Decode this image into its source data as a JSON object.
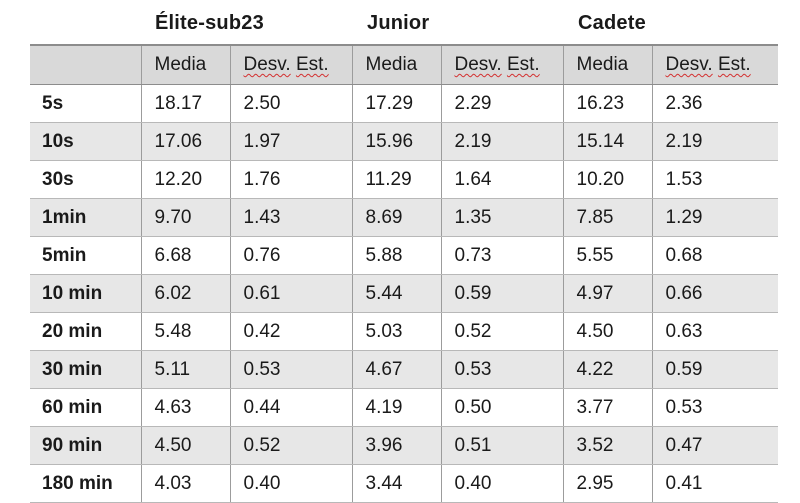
{
  "groups": [
    "Élite-sub23",
    "Junior",
    "Cadete"
  ],
  "subheaders": {
    "media": "Media",
    "desv_prefix": "Desv.",
    "desv_suffix": "Est."
  },
  "rows": [
    {
      "label": "5s",
      "values": [
        "18.17",
        "2.50",
        "17.29",
        "2.29",
        "16.23",
        "2.36"
      ]
    },
    {
      "label": "10s",
      "values": [
        "17.06",
        "1.97",
        "15.96",
        "2.19",
        "15.14",
        "2.19"
      ]
    },
    {
      "label": "30s",
      "values": [
        "12.20",
        "1.76",
        "11.29",
        "1.64",
        "10.20",
        "1.53"
      ]
    },
    {
      "label": "1min",
      "values": [
        "9.70",
        "1.43",
        "8.69",
        "1.35",
        "7.85",
        "1.29"
      ]
    },
    {
      "label": "5min",
      "values": [
        "6.68",
        "0.76",
        "5.88",
        "0.73",
        "5.55",
        "0.68"
      ]
    },
    {
      "label": "10 min",
      "values": [
        "6.02",
        "0.61",
        "5.44",
        "0.59",
        "4.97",
        "0.66"
      ]
    },
    {
      "label": "20 min",
      "values": [
        "5.48",
        "0.42",
        "5.03",
        "0.52",
        "4.50",
        "0.63"
      ]
    },
    {
      "label": "30 min",
      "values": [
        "5.11",
        "0.53",
        "4.67",
        "0.53",
        "4.22",
        "0.59"
      ]
    },
    {
      "label": "60 min",
      "values": [
        "4.63",
        "0.44",
        "4.19",
        "0.50",
        "3.77",
        "0.53"
      ]
    },
    {
      "label": "90 min",
      "values": [
        "4.50",
        "0.52",
        "3.96",
        "0.51",
        "3.52",
        "0.47"
      ]
    },
    {
      "label": "180 min",
      "values": [
        "4.03",
        "0.40",
        "3.44",
        "0.40",
        "2.95",
        "0.41"
      ]
    }
  ]
}
